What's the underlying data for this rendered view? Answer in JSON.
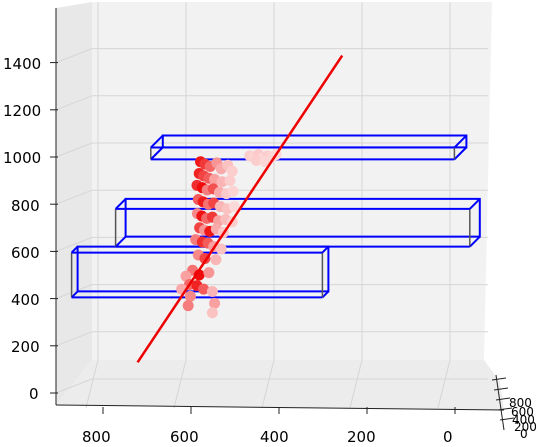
{
  "chart_data": {
    "type": "scatter",
    "projection": "3d",
    "grid": true,
    "legend": "none",
    "xlabel": "",
    "ylabel": "",
    "zlabel": "",
    "x_ticks": [
      "800",
      "600",
      "400",
      "200",
      "0"
    ],
    "z_ticks": [
      "0",
      "200",
      "400",
      "600",
      "800",
      "1000",
      "1200",
      "1400"
    ],
    "depth_ticks": [
      "800",
      "600",
      "400",
      "200",
      "0"
    ],
    "zlim": [
      -100,
      1500
    ],
    "colors": {
      "box": "#0000ff",
      "box_side": "#555555",
      "line": "#ee0000",
      "point_low": "#fde4e4",
      "point_high": "#ee0000",
      "grid": "#d6d6d6",
      "pane": "#f2f2f2"
    },
    "line": {
      "x": [
        710,
        245
      ],
      "z": [
        130,
        1430
      ],
      "color": "#ee0000"
    },
    "boxes": [
      {
        "x": [
          860,
          290
        ],
        "z": [
          405,
          595
        ],
        "depth_offset": 6
      },
      {
        "x": [
          760,
          -45
        ],
        "z": [
          620,
          780
        ],
        "depth_offset": 10
      },
      {
        "x": [
          680,
          -10
        ],
        "z": [
          990,
          1040
        ],
        "depth_offset": 12
      }
    ],
    "points": [
      {
        "x": 567,
        "z": 980,
        "v": 0.9
      },
      {
        "x": 557,
        "z": 970,
        "v": 0.75
      },
      {
        "x": 545,
        "z": 960,
        "v": 0.55
      },
      {
        "x": 530,
        "z": 975,
        "v": 0.35
      },
      {
        "x": 520,
        "z": 950,
        "v": 0.25
      },
      {
        "x": 505,
        "z": 965,
        "v": 0.15
      },
      {
        "x": 495,
        "z": 940,
        "v": 0.1
      },
      {
        "x": 570,
        "z": 930,
        "v": 0.85
      },
      {
        "x": 560,
        "z": 920,
        "v": 0.7
      },
      {
        "x": 548,
        "z": 910,
        "v": 0.6
      },
      {
        "x": 535,
        "z": 905,
        "v": 0.3
      },
      {
        "x": 518,
        "z": 895,
        "v": 0.2
      },
      {
        "x": 500,
        "z": 900,
        "v": 0.1
      },
      {
        "x": 575,
        "z": 880,
        "v": 0.8
      },
      {
        "x": 563,
        "z": 870,
        "v": 0.95
      },
      {
        "x": 552,
        "z": 860,
        "v": 0.45
      },
      {
        "x": 538,
        "z": 865,
        "v": 0.65
      },
      {
        "x": 524,
        "z": 850,
        "v": 0.25
      },
      {
        "x": 508,
        "z": 845,
        "v": 0.12
      },
      {
        "x": 493,
        "z": 855,
        "v": 0.08
      },
      {
        "x": 572,
        "z": 820,
        "v": 0.6
      },
      {
        "x": 561,
        "z": 810,
        "v": 0.88
      },
      {
        "x": 549,
        "z": 800,
        "v": 0.5
      },
      {
        "x": 537,
        "z": 805,
        "v": 0.7
      },
      {
        "x": 522,
        "z": 790,
        "v": 0.2
      },
      {
        "x": 506,
        "z": 780,
        "v": 0.15
      },
      {
        "x": 490,
        "z": 790,
        "v": 0.05
      },
      {
        "x": 574,
        "z": 760,
        "v": 0.4
      },
      {
        "x": 564,
        "z": 750,
        "v": 0.92
      },
      {
        "x": 553,
        "z": 740,
        "v": 0.55
      },
      {
        "x": 540,
        "z": 745,
        "v": 0.75
      },
      {
        "x": 526,
        "z": 730,
        "v": 0.3
      },
      {
        "x": 510,
        "z": 735,
        "v": 0.18
      },
      {
        "x": 495,
        "z": 725,
        "v": 0.1
      },
      {
        "x": 569,
        "z": 700,
        "v": 0.7
      },
      {
        "x": 558,
        "z": 690,
        "v": 0.35
      },
      {
        "x": 546,
        "z": 685,
        "v": 0.9
      },
      {
        "x": 531,
        "z": 695,
        "v": 0.25
      },
      {
        "x": 515,
        "z": 680,
        "v": 0.12
      },
      {
        "x": 578,
        "z": 650,
        "v": 0.45
      },
      {
        "x": 563,
        "z": 640,
        "v": 0.8
      },
      {
        "x": 550,
        "z": 635,
        "v": 0.6
      },
      {
        "x": 537,
        "z": 620,
        "v": 0.3
      },
      {
        "x": 520,
        "z": 610,
        "v": 0.15
      },
      {
        "x": 572,
        "z": 585,
        "v": 0.4
      },
      {
        "x": 557,
        "z": 570,
        "v": 0.7
      },
      {
        "x": 532,
        "z": 565,
        "v": 0.2
      },
      {
        "x": 585,
        "z": 520,
        "v": 0.5
      },
      {
        "x": 600,
        "z": 495,
        "v": 0.3
      },
      {
        "x": 570,
        "z": 500,
        "v": 0.95
      },
      {
        "x": 548,
        "z": 510,
        "v": 0.35
      },
      {
        "x": 592,
        "z": 460,
        "v": 0.55
      },
      {
        "x": 575,
        "z": 455,
        "v": 0.85
      },
      {
        "x": 560,
        "z": 440,
        "v": 0.6
      },
      {
        "x": 610,
        "z": 440,
        "v": 0.25
      },
      {
        "x": 590,
        "z": 410,
        "v": 0.4
      },
      {
        "x": 540,
        "z": 430,
        "v": 0.2
      },
      {
        "x": 535,
        "z": 380,
        "v": 0.3
      },
      {
        "x": 595,
        "z": 370,
        "v": 0.45
      },
      {
        "x": 540,
        "z": 340,
        "v": 0.15
      },
      {
        "x": 455,
        "z": 1005,
        "v": 0.1
      },
      {
        "x": 445,
        "z": 1000,
        "v": 0.08
      },
      {
        "x": 435,
        "z": 1010,
        "v": 0.12
      },
      {
        "x": 425,
        "z": 995,
        "v": 0.05
      },
      {
        "x": 415,
        "z": 1005,
        "v": 0.1
      },
      {
        "x": 405,
        "z": 1000,
        "v": 0.07
      },
      {
        "x": 395,
        "z": 1010,
        "v": 0.05
      },
      {
        "x": 440,
        "z": 985,
        "v": 0.1
      },
      {
        "x": 420,
        "z": 980,
        "v": 0.06
      }
    ]
  }
}
